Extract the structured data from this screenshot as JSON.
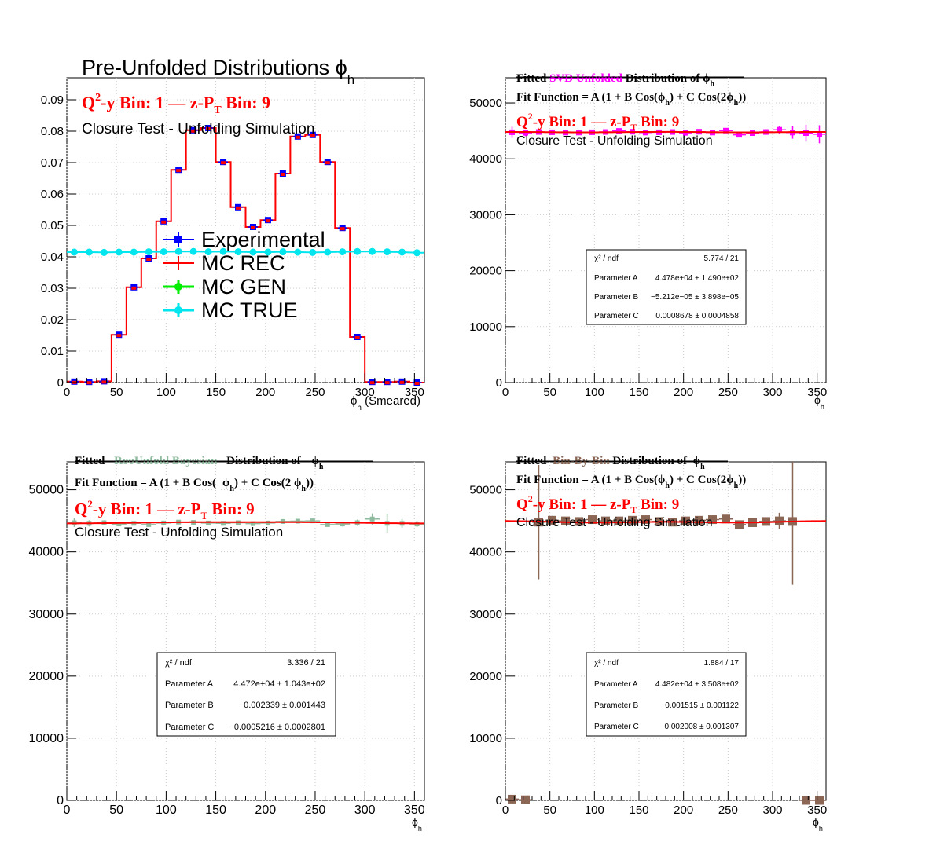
{
  "chart_data": [
    {
      "type": "bar",
      "panel": "top-left",
      "title_main": "Pre-Unfolded Distributions ",
      "title_phi": "ϕ",
      "title_sub": "h",
      "bin_label": {
        "q2y": "Q",
        "sup": "2",
        "rest": "-y Bin: 1  —  z-P",
        "sub": "T",
        "end": " Bin: 9"
      },
      "subtitle": "Closure Test - Unfolding Simulation",
      "xlabel": {
        "phi": "ϕ",
        "sub": "h",
        "rest": " (Smeared)"
      },
      "xlim": [
        0,
        360
      ],
      "ylim": [
        0,
        0.097
      ],
      "x_ticks": [
        0,
        50,
        100,
        150,
        200,
        250,
        300,
        350
      ],
      "y_ticks": [
        "0",
        "0.01",
        "0.02",
        "0.03",
        "0.04",
        "0.05",
        "0.06",
        "0.07",
        "0.08",
        "0.09"
      ],
      "y_tick_values": [
        0,
        0.01,
        0.02,
        0.03,
        0.04,
        0.05,
        0.06,
        0.07,
        0.08,
        0.09
      ],
      "bin_width": 15,
      "legend": [
        "Experimental",
        "MC REC",
        "MC GEN",
        "MC TRUE"
      ],
      "legend_colors": [
        "#0000ff",
        "#ff0000",
        "#00ee00",
        "#00e5ee"
      ],
      "series": [
        {
          "name": "MC REC",
          "color": "#ff0000",
          "values": [
            0.0003,
            0.0002,
            0.0004,
            0.0152,
            0.0303,
            0.0395,
            0.0513,
            0.0677,
            0.0803,
            0.081,
            0.0702,
            0.0558,
            0.0495,
            0.0517,
            0.0665,
            0.0783,
            0.0788,
            0.0702,
            0.0492,
            0.0145,
            0.0002,
            0.0002,
            0.0003,
            0.0
          ]
        },
        {
          "name": "MC TRUE",
          "color": "#00e5ee",
          "values": [
            0.0415,
            0.0415,
            0.0414,
            0.0415,
            0.0415,
            0.0416,
            0.0416,
            0.0417,
            0.0417,
            0.0416,
            0.0417,
            0.0416,
            0.0415,
            0.0415,
            0.0416,
            0.0415,
            0.0414,
            0.0415,
            0.0416,
            0.0417,
            0.0417,
            0.0416,
            0.0415,
            0.0413
          ]
        }
      ]
    },
    {
      "type": "scatter",
      "panel": "top-right",
      "title": {
        "fitted": "Fitted ",
        "method": "SVD Unfolded",
        "rest": " Distribution of ",
        "phi": "ϕ",
        "sub": "h"
      },
      "method_color": "#ff00ff",
      "fit_function": {
        "a": "Fit Function = A (1 + B Cos(",
        "phi1": "ϕ",
        "sub1": "h",
        "b": ") + C Cos(2",
        "phi2": "ϕ",
        "sub2": "h",
        "c": "))"
      },
      "bin_label": {
        "q2y": "Q",
        "sup": "2",
        "rest": "-y Bin: 1  —  z-P",
        "sub": "T",
        "end": " Bin: 9"
      },
      "subtitle": "Closure Test - Unfolding Simulation",
      "xlabel": {
        "phi": "ϕ",
        "sub": "h"
      },
      "xlim": [
        0,
        360
      ],
      "ylim": [
        0,
        54500
      ],
      "x_ticks": [
        0,
        50,
        100,
        150,
        200,
        250,
        300,
        350
      ],
      "y_ticks": [
        "0",
        "10000",
        "20000",
        "30000",
        "40000",
        "50000"
      ],
      "y_tick_values": [
        0,
        10000,
        20000,
        30000,
        40000,
        50000
      ],
      "marker_color": "#ff00ff",
      "x": [
        7.5,
        22.5,
        37.5,
        52.5,
        67.5,
        82.5,
        97.5,
        112.5,
        127.5,
        142.5,
        157.5,
        172.5,
        187.5,
        202.5,
        217.5,
        232.5,
        247.5,
        262.5,
        277.5,
        292.5,
        307.5,
        322.5,
        337.5,
        352.5
      ],
      "y": [
        44750,
        44650,
        44800,
        44750,
        44700,
        44700,
        44750,
        44800,
        45000,
        44850,
        44700,
        44750,
        44800,
        44650,
        44850,
        44700,
        45050,
        44300,
        44600,
        44800,
        45200,
        44700,
        44600,
        44400
      ],
      "y_err": [
        1000,
        600,
        400,
        350,
        300,
        300,
        250,
        250,
        200,
        200,
        200,
        250,
        250,
        250,
        300,
        300,
        300,
        350,
        400,
        500,
        700,
        1100,
        1500,
        1600
      ],
      "fit": {
        "A": 44780,
        "B": -5.212e-05,
        "C": 0.0008678
      },
      "stats": {
        "rows": [
          {
            "label": "χ² / ndf",
            "value": "5.774 / 21"
          },
          {
            "label": "Parameter A",
            "value": "4.478e+04 ± 1.490e+02"
          },
          {
            "label": "Parameter B",
            "value": "−5.212e−05 ± 3.898e−05"
          },
          {
            "label": "Parameter C",
            "value": "0.0008678 ± 0.0004858"
          }
        ]
      }
    },
    {
      "type": "scatter",
      "panel": "bottom-left",
      "title": {
        "fitted": "Fitted ",
        "method": "RooUnfold Bayesian",
        "rest": " Distribution of ",
        "phi": "ϕ",
        "sub": "h"
      },
      "method_color": "#8fbc9f",
      "fit_function": {
        "a": "Fit Function = A (1 + B Cos(",
        "phi1": "ϕ",
        "sub1": "h",
        "b": ") + C Cos(2 ",
        "phi2": "ϕ",
        "sub2": "h",
        "c": "))"
      },
      "bin_label": {
        "q2y": "Q",
        "sup": "2",
        "rest": "-y Bin: 1  —  z-P",
        "sub": "T",
        "end": " Bin: 9"
      },
      "subtitle": "Closure Test - Unfolding Simulation",
      "xlabel": {
        "phi": "ϕ",
        "sub": "h"
      },
      "xlim": [
        0,
        360
      ],
      "ylim": [
        0,
        54500
      ],
      "x_ticks": [
        0,
        50,
        100,
        150,
        200,
        250,
        300,
        350
      ],
      "y_ticks": [
        "0",
        "10000",
        "20000",
        "30000",
        "40000",
        "50000"
      ],
      "y_tick_values": [
        0,
        10000,
        20000,
        30000,
        40000,
        50000
      ],
      "marker_color": "#8fbc9f",
      "x": [
        7.5,
        22.5,
        37.5,
        52.5,
        67.5,
        82.5,
        97.5,
        112.5,
        127.5,
        142.5,
        157.5,
        172.5,
        187.5,
        202.5,
        217.5,
        232.5,
        247.5,
        262.5,
        277.5,
        292.5,
        307.5,
        322.5,
        337.5,
        352.5
      ],
      "y": [
        44700,
        44600,
        44700,
        44500,
        44600,
        44400,
        44650,
        44800,
        44750,
        44650,
        44600,
        44700,
        44550,
        44650,
        44900,
        44950,
        45000,
        44400,
        44500,
        44700,
        45300,
        44600,
        44600,
        44500
      ],
      "y_err": [
        700,
        500,
        400,
        350,
        300,
        300,
        250,
        250,
        250,
        250,
        250,
        250,
        250,
        250,
        300,
        300,
        350,
        350,
        400,
        500,
        900,
        1500,
        700,
        500
      ],
      "fit": {
        "A": 44720,
        "B": -0.002339,
        "C": -0.0005216
      },
      "stats": {
        "rows": [
          {
            "label": "χ² / ndf",
            "value": "3.336 / 21"
          },
          {
            "label": "Parameter A",
            "value": "4.472e+04 ± 1.043e+02"
          },
          {
            "label": "Parameter B",
            "value": "−0.002339 ± 0.001443"
          },
          {
            "label": "Parameter C",
            "value": "−0.0005216 ± 0.0002801"
          }
        ]
      }
    },
    {
      "type": "scatter",
      "panel": "bottom-right",
      "title": {
        "fitted": "Fitted ",
        "method": "Bin-By-Bin",
        "rest": " Distribution of ",
        "phi": "ϕ",
        "sub": "h"
      },
      "method_color": "#8b6655",
      "fit_function": {
        "a": "Fit Function = A (1 + B Cos(",
        "phi1": "ϕ",
        "sub1": "h",
        "b": ") + C Cos(2",
        "phi2": "ϕ",
        "sub2": "h",
        "c": "))"
      },
      "bin_label": {
        "q2y": "Q",
        "sup": "2",
        "rest": "-y Bin: 1  —  z-P",
        "sub": "T",
        "end": " Bin: 9"
      },
      "subtitle": "Closure Test - Unfolding Simulation",
      "xlabel": {
        "phi": "ϕ",
        "sub": "h"
      },
      "xlim": [
        0,
        360
      ],
      "ylim": [
        0,
        54500
      ],
      "x_ticks": [
        0,
        50,
        100,
        150,
        200,
        250,
        300,
        350
      ],
      "y_ticks": [
        "0",
        "10000",
        "20000",
        "30000",
        "40000",
        "50000"
      ],
      "y_tick_values": [
        0,
        10000,
        20000,
        30000,
        40000,
        50000
      ],
      "marker_color": "#8b6655",
      "x": [
        7.5,
        22.5,
        37.5,
        52.5,
        67.5,
        82.5,
        97.5,
        112.5,
        127.5,
        142.5,
        157.5,
        172.5,
        187.5,
        202.5,
        217.5,
        232.5,
        247.5,
        262.5,
        277.5,
        292.5,
        307.5,
        322.5,
        337.5,
        352.5
      ],
      "y": [
        200,
        100,
        44800,
        45100,
        45000,
        44900,
        45200,
        45000,
        45000,
        45100,
        45200,
        44900,
        44800,
        45000,
        45100,
        45200,
        45300,
        44400,
        44700,
        44900,
        45000,
        44900,
        0,
        0
      ],
      "y_err": [
        600,
        600,
        9200,
        700,
        400,
        350,
        300,
        300,
        250,
        250,
        250,
        300,
        300,
        300,
        350,
        350,
        350,
        400,
        400,
        600,
        1300,
        10200,
        500,
        500
      ],
      "fit": {
        "A": 44820,
        "B": 0.001515,
        "C": 0.002008
      },
      "stats": {
        "rows": [
          {
            "label": "χ² / ndf",
            "value": "1.884 / 17"
          },
          {
            "label": "Parameter A",
            "value": "4.482e+04 ± 3.508e+02"
          },
          {
            "label": "Parameter B",
            "value": "0.001515 ± 0.001122"
          },
          {
            "label": "Parameter C",
            "value": "0.002008 ± 0.001307"
          }
        ]
      }
    }
  ]
}
